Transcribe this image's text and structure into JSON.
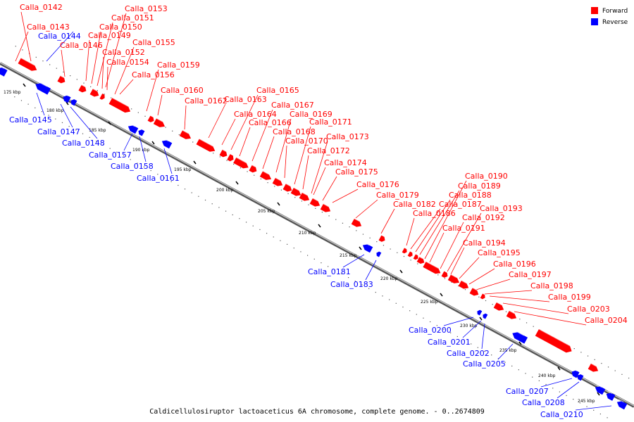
{
  "title": "Caldicellulosiruptor lactoaceticus 6A chromosome, complete genome. - 0..2674809",
  "legend": [
    {
      "label": "Forward",
      "color": "#ff0000"
    },
    {
      "label": "Reverse",
      "color": "#0000ff"
    }
  ],
  "colors": {
    "forward": "#ff0000",
    "reverse": "#0000ff",
    "backbone": "#777777"
  },
  "tick_labels": [
    "175 kbp",
    "180 kbp",
    "185 kbp",
    "190 kbp",
    "195 kbp",
    "200 kbp",
    "205 kbp",
    "210 kbp",
    "215 kbp",
    "220 kbp",
    "225 kbp",
    "230 kbp",
    "235 kbp",
    "240 kbp",
    "245 kbp"
  ],
  "genes": [
    {
      "name": "Calla_0142",
      "strand": "forward"
    },
    {
      "name": "Calla_0143",
      "strand": "forward"
    },
    {
      "name": "Calla_0144",
      "strand": "reverse"
    },
    {
      "name": "Calla_0145",
      "strand": "reverse"
    },
    {
      "name": "Calla_0146",
      "strand": "forward"
    },
    {
      "name": "Calla_0147",
      "strand": "reverse"
    },
    {
      "name": "Calla_0148",
      "strand": "reverse"
    },
    {
      "name": "Calla_0149",
      "strand": "forward"
    },
    {
      "name": "Calla_0150",
      "strand": "forward"
    },
    {
      "name": "Calla_0151",
      "strand": "forward"
    },
    {
      "name": "Calla_0152",
      "strand": "forward"
    },
    {
      "name": "Calla_0153",
      "strand": "forward"
    },
    {
      "name": "Calla_0154",
      "strand": "forward"
    },
    {
      "name": "Calla_0155",
      "strand": "forward"
    },
    {
      "name": "Calla_0156",
      "strand": "forward"
    },
    {
      "name": "Calla_0157",
      "strand": "reverse"
    },
    {
      "name": "Calla_0158",
      "strand": "reverse"
    },
    {
      "name": "Calla_0159",
      "strand": "forward"
    },
    {
      "name": "Calla_0160",
      "strand": "forward"
    },
    {
      "name": "Calla_0161",
      "strand": "reverse"
    },
    {
      "name": "Calla_0162",
      "strand": "forward"
    },
    {
      "name": "Calla_0163",
      "strand": "forward"
    },
    {
      "name": "Calla_0164",
      "strand": "forward"
    },
    {
      "name": "Calla_0165",
      "strand": "forward"
    },
    {
      "name": "Calla_0166",
      "strand": "forward"
    },
    {
      "name": "Calla_0167",
      "strand": "forward"
    },
    {
      "name": "Calla_0168",
      "strand": "forward"
    },
    {
      "name": "Calla_0169",
      "strand": "forward"
    },
    {
      "name": "Calla_0170",
      "strand": "forward"
    },
    {
      "name": "Calla_0171",
      "strand": "forward"
    },
    {
      "name": "Calla_0172",
      "strand": "forward"
    },
    {
      "name": "Calla_0173",
      "strand": "forward"
    },
    {
      "name": "Calla_0174",
      "strand": "forward"
    },
    {
      "name": "Calla_0175",
      "strand": "forward"
    },
    {
      "name": "Calla_0176",
      "strand": "forward"
    },
    {
      "name": "Calla_0179",
      "strand": "forward"
    },
    {
      "name": "Calla_0181",
      "strand": "reverse"
    },
    {
      "name": "Calla_0182",
      "strand": "forward"
    },
    {
      "name": "Calla_0183",
      "strand": "reverse"
    },
    {
      "name": "Calla_0186",
      "strand": "forward"
    },
    {
      "name": "Calla_0187",
      "strand": "forward"
    },
    {
      "name": "Calla_0188",
      "strand": "forward"
    },
    {
      "name": "Calla_0189",
      "strand": "forward"
    },
    {
      "name": "Calla_0190",
      "strand": "forward"
    },
    {
      "name": "Calla_0191",
      "strand": "forward"
    },
    {
      "name": "Calla_0192",
      "strand": "forward"
    },
    {
      "name": "Calla_0193",
      "strand": "forward"
    },
    {
      "name": "Calla_0194",
      "strand": "forward"
    },
    {
      "name": "Calla_0195",
      "strand": "forward"
    },
    {
      "name": "Calla_0196",
      "strand": "forward"
    },
    {
      "name": "Calla_0197",
      "strand": "forward"
    },
    {
      "name": "Calla_0198",
      "strand": "forward"
    },
    {
      "name": "Calla_0199",
      "strand": "forward"
    },
    {
      "name": "Calla_0200",
      "strand": "reverse"
    },
    {
      "name": "Calla_0201",
      "strand": "reverse"
    },
    {
      "name": "Calla_0202",
      "strand": "reverse"
    },
    {
      "name": "Calla_0203",
      "strand": "forward"
    },
    {
      "name": "Calla_0204",
      "strand": "forward"
    },
    {
      "name": "Calla_0205",
      "strand": "reverse"
    },
    {
      "name": "Calla_0207",
      "strand": "reverse"
    },
    {
      "name": "Calla_0208",
      "strand": "reverse"
    },
    {
      "name": "Calla_0210",
      "strand": "reverse"
    }
  ]
}
